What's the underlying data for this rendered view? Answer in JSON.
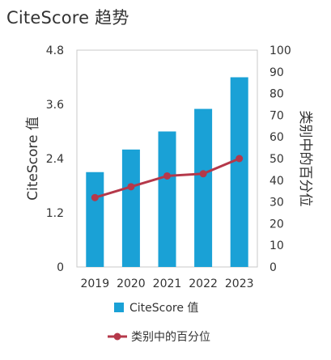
{
  "chart_data": {
    "type": "bar",
    "title": "CiteScore 趋势",
    "categories": [
      "2019",
      "2020",
      "2021",
      "2022",
      "2023"
    ],
    "series": [
      {
        "name": "CiteScore 值",
        "type": "bar",
        "axis": "left",
        "color": "#1aa1d6",
        "values": [
          2.1,
          2.6,
          3.0,
          3.5,
          4.2
        ]
      },
      {
        "name": "类别中的百分位",
        "type": "line",
        "axis": "right",
        "color": "#b5384a",
        "values": [
          32,
          37,
          42,
          43,
          50
        ]
      }
    ],
    "ylabel": "CiteScore 值",
    "ylim": [
      0,
      4.8
    ],
    "yticks": [
      "0",
      "1.2",
      "2.4",
      "3.6",
      "4.8"
    ],
    "y2label": "类别中的百分位",
    "y2lim": [
      0,
      100
    ],
    "y2ticks": [
      "0",
      "10",
      "20",
      "30",
      "40",
      "50",
      "60",
      "70",
      "80",
      "90",
      "100"
    ],
    "grid": false,
    "legend_position": "bottom"
  }
}
